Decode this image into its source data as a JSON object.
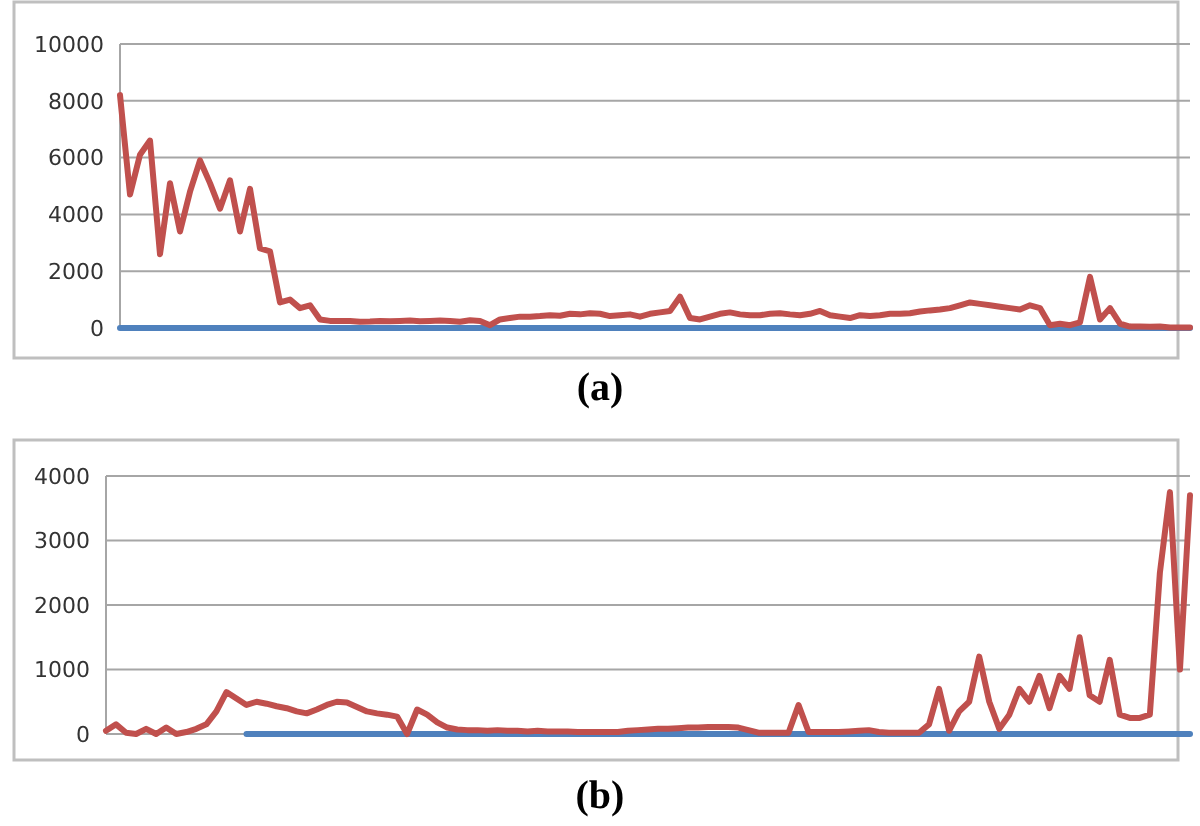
{
  "chart_data": [
    {
      "type": "line",
      "title": "(a)",
      "categories": [
        null,
        null,
        null,
        null,
        null,
        null,
        null,
        null,
        null,
        null,
        null,
        null,
        null,
        null,
        null,
        null,
        null,
        null,
        null,
        null,
        null,
        null,
        null,
        null,
        null,
        null,
        null,
        null,
        null,
        null,
        null,
        null,
        null,
        null,
        null,
        null,
        null,
        null,
        null,
        null,
        null,
        null,
        null,
        null,
        null,
        null,
        null,
        null,
        null,
        null,
        null,
        null,
        null,
        null,
        null,
        null,
        null,
        null,
        null,
        null,
        null,
        null,
        null,
        null,
        null,
        null,
        null,
        null,
        null,
        null,
        null,
        null,
        null,
        null,
        null,
        null,
        null,
        null,
        null,
        null,
        null,
        null,
        null,
        null,
        null,
        null,
        null,
        null,
        null,
        null,
        null,
        null,
        null,
        null,
        null,
        null,
        null,
        null,
        null,
        null,
        null,
        null,
        null,
        null,
        null,
        null,
        null,
        null
      ],
      "series": [
        {
          "color": "#c0504d",
          "values": [
            8200,
            4700,
            6100,
            6600,
            2600,
            5100,
            3400,
            4800,
            5900,
            5100,
            4200,
            5200,
            3400,
            4900,
            2800,
            2700,
            900,
            1000,
            700,
            800,
            300,
            250,
            250,
            250,
            220,
            230,
            250,
            240,
            250,
            260,
            240,
            250,
            260,
            250,
            220,
            270,
            250,
            100,
            300,
            350,
            400,
            400,
            420,
            450,
            430,
            500,
            480,
            520,
            500,
            420,
            450,
            480,
            400,
            500,
            550,
            600,
            1100,
            350,
            300,
            400,
            500,
            550,
            480,
            450,
            450,
            500,
            520,
            480,
            450,
            500,
            600,
            450,
            400,
            350,
            450,
            420,
            450,
            500,
            500,
            520,
            580,
            620,
            650,
            700,
            800,
            900,
            850,
            800,
            750,
            700,
            650,
            800,
            700,
            100,
            150,
            100,
            200,
            1800,
            300,
            700,
            150,
            50,
            50,
            40,
            50,
            20,
            20,
            20
          ]
        },
        {
          "color": "#4f81bd",
          "values": [
            0,
            0,
            0,
            0,
            0,
            0,
            0,
            0,
            0,
            0,
            0,
            0,
            0,
            0,
            0,
            0,
            0,
            0,
            0,
            0,
            0,
            0,
            0,
            0,
            0,
            0,
            0,
            0,
            0,
            0,
            0,
            0,
            0,
            0,
            0,
            0,
            0,
            0,
            0,
            0,
            0,
            0,
            0,
            0,
            0,
            0,
            0,
            0,
            0,
            0,
            0,
            0,
            0,
            0,
            0,
            0,
            0,
            0,
            0,
            0,
            0,
            0,
            0,
            0,
            0,
            0,
            0,
            0,
            0,
            0,
            0,
            0,
            0,
            0,
            0,
            0,
            0,
            0,
            0,
            0,
            0,
            0,
            0,
            0,
            0,
            0,
            0,
            0,
            0,
            0,
            0,
            0,
            0,
            0,
            0,
            0,
            0,
            0,
            0,
            0,
            0,
            0,
            0,
            0,
            0,
            0,
            0,
            0
          ]
        }
      ],
      "ylim": [
        0,
        10000
      ],
      "yticks": [
        0,
        2000,
        4000,
        6000,
        8000,
        10000
      ],
      "grid": "y",
      "tick_labels": "y",
      "marker": "none",
      "line_style": "solid"
    },
    {
      "type": "line",
      "title": "(b)",
      "categories": [
        null,
        null,
        null,
        null,
        null,
        null,
        null,
        null,
        null,
        null,
        null,
        null,
        null,
        null,
        null,
        null,
        null,
        null,
        null,
        null,
        null,
        null,
        null,
        null,
        null,
        null,
        null,
        null,
        null,
        null,
        null,
        null,
        null,
        null,
        null,
        null,
        null,
        null,
        null,
        null,
        null,
        null,
        null,
        null,
        null,
        null,
        null,
        null,
        null,
        null,
        null,
        null,
        null,
        null,
        null,
        null,
        null,
        null,
        null,
        null,
        null,
        null,
        null,
        null,
        null,
        null,
        null,
        null,
        null,
        null,
        null,
        null,
        null,
        null,
        null,
        null,
        null,
        null,
        null,
        null,
        null,
        null,
        null,
        null,
        null,
        null,
        null,
        null,
        null,
        null,
        null,
        null,
        null,
        null,
        null,
        null,
        null,
        null,
        null,
        null,
        null,
        null,
        null,
        null,
        null,
        null,
        null,
        null,
        null
      ],
      "series": [
        {
          "color": "#c0504d",
          "values": [
            50,
            150,
            20,
            0,
            80,
            0,
            100,
            0,
            30,
            80,
            150,
            350,
            650,
            550,
            450,
            500,
            470,
            430,
            400,
            350,
            320,
            380,
            450,
            500,
            490,
            420,
            350,
            320,
            300,
            270,
            0,
            380,
            300,
            180,
            100,
            70,
            60,
            60,
            50,
            60,
            50,
            50,
            40,
            50,
            40,
            40,
            40,
            30,
            30,
            30,
            30,
            30,
            50,
            60,
            70,
            80,
            80,
            90,
            100,
            100,
            110,
            110,
            110,
            100,
            60,
            20,
            20,
            20,
            20,
            450,
            30,
            30,
            30,
            30,
            40,
            50,
            60,
            30,
            20,
            20,
            20,
            20,
            150,
            700,
            50,
            350,
            500,
            1200,
            500,
            80,
            300,
            700,
            500,
            900,
            400,
            900,
            700,
            1500,
            600,
            500,
            1150,
            300,
            250,
            250,
            300,
            2500,
            3750,
            1000,
            3700
          ]
        },
        {
          "color": "#4f81bd",
          "values": [
            null,
            null,
            null,
            null,
            null,
            null,
            null,
            null,
            null,
            null,
            null,
            null,
            null,
            null,
            0,
            0,
            0,
            0,
            0,
            0,
            0,
            0,
            0,
            0,
            0,
            0,
            0,
            0,
            0,
            0,
            0,
            0,
            0,
            0,
            0,
            0,
            0,
            0,
            0,
            0,
            0,
            0,
            0,
            0,
            0,
            0,
            0,
            0,
            0,
            0,
            0,
            0,
            0,
            0,
            0,
            0,
            0,
            0,
            0,
            0,
            0,
            0,
            0,
            0,
            0,
            0,
            0,
            0,
            0,
            0,
            0,
            0,
            0,
            0,
            0,
            0,
            0,
            0,
            0,
            0,
            0,
            0,
            0,
            0,
            0,
            0,
            0,
            0,
            0,
            0,
            0,
            0,
            0,
            0,
            0,
            0,
            0,
            0,
            0,
            0,
            0,
            0,
            0,
            0,
            0,
            0,
            0,
            0,
            0
          ]
        }
      ],
      "ylim": [
        0,
        4000
      ],
      "yticks": [
        0,
        1000,
        2000,
        3000,
        4000
      ],
      "grid": "y",
      "tick_labels": "y",
      "marker": "none",
      "line_style": "solid"
    }
  ]
}
